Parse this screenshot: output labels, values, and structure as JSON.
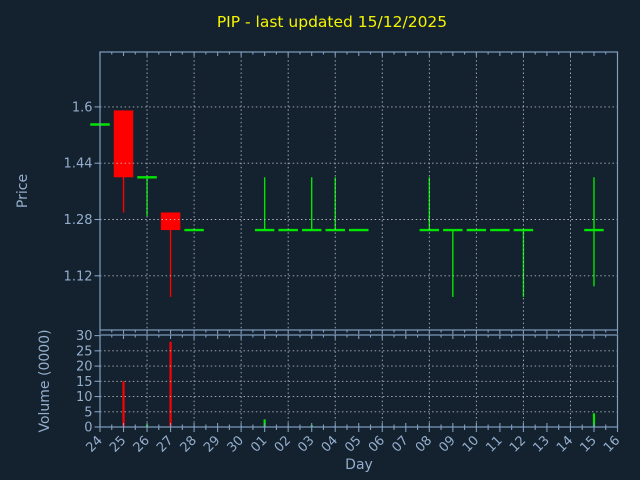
{
  "title": "PIP - last updated 15/12/2025",
  "colors": {
    "background": "#14212e",
    "axis": "#7f9ec0",
    "grid": "#c9ced4",
    "tick_text": "#93aecc",
    "label_text": "#93aecc",
    "title_text": "#f5f500",
    "up": "#00e600",
    "down": "#ff0000"
  },
  "price_axis": {
    "label": "Price",
    "ticks": [
      {
        "label": "1.6",
        "value": 1.6
      },
      {
        "label": "1.44",
        "value": 1.44
      },
      {
        "label": "1.28",
        "value": 1.28
      },
      {
        "label": "1.12",
        "value": 1.12
      }
    ]
  },
  "volume_axis": {
    "label": "Volume (0000)",
    "ticks": [
      {
        "label": "30",
        "value": 30
      },
      {
        "label": "25",
        "value": 25
      },
      {
        "label": "20",
        "value": 20
      },
      {
        "label": "15",
        "value": 15
      },
      {
        "label": "10",
        "value": 10
      },
      {
        "label": "5",
        "value": 5
      },
      {
        "label": "0",
        "value": 0
      }
    ]
  },
  "x_axis": {
    "label": "Day",
    "categories": [
      "24",
      "25",
      "26",
      "27",
      "28",
      "29",
      "30",
      "01",
      "02",
      "03",
      "04",
      "05",
      "06",
      "07",
      "08",
      "09",
      "10",
      "11",
      "12",
      "13",
      "14",
      "15",
      "16"
    ]
  },
  "chart_data": {
    "type": "candlestick",
    "title": "PIP - last updated 15/12/2025",
    "x_categories": [
      "24",
      "25",
      "26",
      "27",
      "28",
      "29",
      "30",
      "01",
      "02",
      "03",
      "04",
      "05",
      "06",
      "07",
      "08",
      "09",
      "10",
      "11",
      "12",
      "13",
      "14",
      "15",
      "16"
    ],
    "price_ylim": [
      0.966,
      1.756
    ],
    "volume_ylim": [
      0,
      30.2
    ],
    "grid": "dotted; horizontal at axis ticks, vertical every 2nd day; drawn above candles",
    "candles": [
      {
        "day": "24",
        "open": 1.55,
        "high": 1.55,
        "low": 1.55,
        "close": 1.55,
        "volume_0000": 0,
        "direction": "up"
      },
      {
        "day": "25",
        "open": 1.59,
        "high": 1.59,
        "low": 1.3,
        "close": 1.4,
        "volume_0000": 15,
        "direction": "down"
      },
      {
        "day": "26",
        "open": 1.4,
        "high": 1.4,
        "low": 1.29,
        "close": 1.4,
        "volume_0000": 0.8,
        "direction": "up"
      },
      {
        "day": "27",
        "open": 1.3,
        "high": 1.3,
        "low": 1.06,
        "close": 1.25,
        "volume_0000": 28,
        "direction": "down"
      },
      {
        "day": "28",
        "open": 1.25,
        "high": 1.25,
        "low": 1.25,
        "close": 1.25,
        "volume_0000": 0,
        "direction": "up"
      },
      {
        "day": "01",
        "open": 1.25,
        "high": 1.4,
        "low": 1.25,
        "close": 1.25,
        "volume_0000": 2.5,
        "direction": "up"
      },
      {
        "day": "02",
        "open": 1.25,
        "high": 1.25,
        "low": 1.25,
        "close": 1.25,
        "volume_0000": 0,
        "direction": "up"
      },
      {
        "day": "03",
        "open": 1.25,
        "high": 1.4,
        "low": 1.25,
        "close": 1.25,
        "volume_0000": 0.6,
        "direction": "up"
      },
      {
        "day": "04",
        "open": 1.25,
        "high": 1.4,
        "low": 1.25,
        "close": 1.25,
        "volume_0000": 0,
        "direction": "up"
      },
      {
        "day": "05",
        "open": 1.25,
        "high": 1.25,
        "low": 1.25,
        "close": 1.25,
        "volume_0000": 0,
        "direction": "up"
      },
      {
        "day": "08",
        "open": 1.25,
        "high": 1.4,
        "low": 1.25,
        "close": 1.25,
        "volume_0000": 0,
        "direction": "up"
      },
      {
        "day": "09",
        "open": 1.25,
        "high": 1.25,
        "low": 1.06,
        "close": 1.25,
        "volume_0000": 0,
        "direction": "up"
      },
      {
        "day": "10",
        "open": 1.25,
        "high": 1.25,
        "low": 1.25,
        "close": 1.25,
        "volume_0000": 0,
        "direction": "up"
      },
      {
        "day": "11",
        "open": 1.25,
        "high": 1.25,
        "low": 1.25,
        "close": 1.25,
        "volume_0000": 0,
        "direction": "up"
      },
      {
        "day": "12",
        "open": 1.25,
        "high": 1.25,
        "low": 1.06,
        "close": 1.25,
        "volume_0000": 0,
        "direction": "up"
      },
      {
        "day": "15",
        "open": 1.25,
        "high": 1.4,
        "low": 1.09,
        "close": 1.25,
        "volume_0000": 4.5,
        "direction": "up"
      }
    ],
    "no_data_days": [
      "29",
      "30",
      "06",
      "07",
      "13",
      "14",
      "16"
    ]
  }
}
